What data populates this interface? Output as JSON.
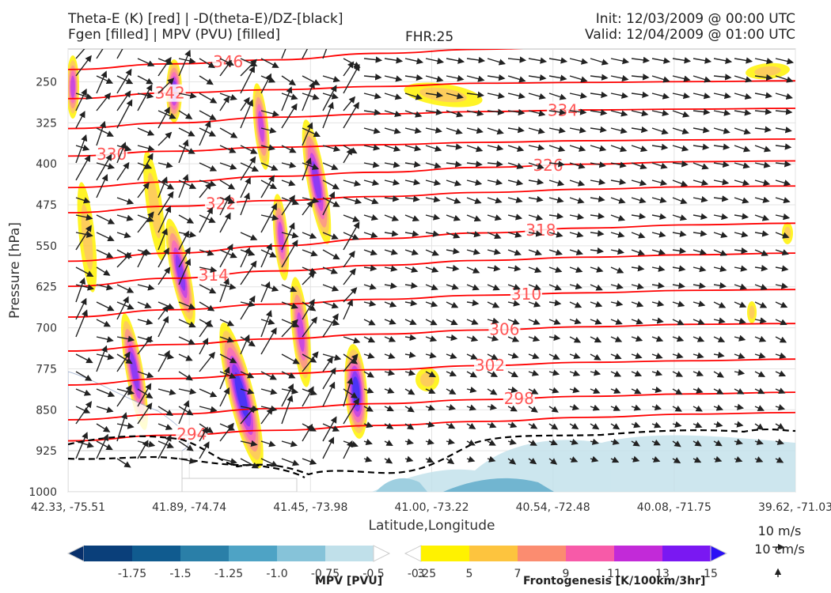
{
  "header": {
    "line1_left": "Theta-E (K) [red] | -D(theta-E)/DZ-[black]",
    "line2_left": "Fgen [filled] | MPV (PVU) [filled]",
    "fhr": "FHR:25",
    "line1_right": "Init: 12/03/2009 @ 00:00 UTC",
    "line2_right": "Valid: 12/04/2009 @ 01:00 UTC"
  },
  "chart_data": {
    "type": "cross-section",
    "xlabel": "Latitude,Longitude",
    "ylabel": "Pressure [hPa]",
    "x_ticks": [
      "42.33, -75.51",
      "41.89, -74.74",
      "41.45, -73.98",
      "41.00, -73.22",
      "40.54, -72.48",
      "40.08, -71.75",
      "39.62, -71.03"
    ],
    "y_ticks": [
      250,
      325,
      400,
      475,
      550,
      625,
      700,
      775,
      850,
      925,
      1000
    ],
    "ylim": [
      1000,
      190
    ],
    "grid": true,
    "theta_e_color": "#ff0000",
    "theta_e_contours": [
      {
        "label": "342",
        "values": [
          338.6,
          339.3,
          339.7,
          340.1,
          340.5,
          340.6,
          340.7,
          340.8
        ]
      },
      {
        "label": "346",
        "values": [
          342.2,
          342.9,
          343.4,
          344.2,
          344.7,
          345.1,
          345.4,
          345.5
        ]
      },
      {
        "label": "330",
        "values": [
          331.5,
          332.1,
          332.6,
          332.9,
          333.2,
          333.4,
          333.5,
          333.6
        ]
      },
      {
        "label": "334",
        "values": [
          334.9,
          335.6,
          336.3,
          336.7,
          337.0,
          337.2,
          337.3,
          337.4
        ]
      },
      {
        "label": "322",
        "values": [
          324.5,
          325.3,
          326.0,
          326.5,
          327.0,
          327.4,
          327.7,
          327.8
        ]
      },
      {
        "label": "326",
        "values": [
          327.6,
          328.3,
          329.0,
          329.5,
          330.1,
          330.5,
          330.8,
          330.9
        ]
      },
      {
        "label": "314",
        "values": [
          315.4,
          316.4,
          317.3,
          318.0,
          318.6,
          319.0,
          319.3,
          319.5
        ]
      },
      {
        "label": "318",
        "values": [
          318.5,
          319.5,
          320.4,
          321.3,
          322.0,
          322.6,
          323.0,
          323.2
        ]
      },
      {
        "label": "310",
        "values": [
          311.6,
          312.5,
          313.2,
          313.8,
          314.3,
          314.6,
          314.9,
          315.0
        ]
      },
      {
        "label": "306",
        "values": [
          307.4,
          308.2,
          308.9,
          309.5,
          310.0,
          310.4,
          310.7,
          310.8
        ]
      },
      {
        "label": "302",
        "values": [
          303.2,
          304.0,
          304.6,
          305.1,
          305.6,
          306.0,
          306.2,
          306.4
        ]
      },
      {
        "label": "294",
        "values": [
          296.3,
          297.0,
          297.6,
          298.2,
          298.7,
          299.2,
          299.6,
          299.8
        ]
      },
      {
        "label": "298",
        "values": [
          298.9,
          299.6,
          300.3,
          300.9,
          301.4,
          301.8,
          302.1,
          302.3
        ]
      }
    ],
    "mpv_colorbar": {
      "label": "MPV [PVU]",
      "ticks": [
        "-1.75",
        "-1.5",
        "-1.25",
        "-1.0",
        "-0.75",
        "-0.5",
        "-0.25"
      ],
      "colors": [
        "#08306b",
        "#0a3f7a",
        "#105b8f",
        "#2a7fa8",
        "#4ea3c5",
        "#86c3d9",
        "#c0e0ea",
        "#ffffff"
      ]
    },
    "fgen_colorbar": {
      "label": "Frontogenesis [K/100km/3hr]",
      "ticks": [
        "3",
        "5",
        "7",
        "9",
        "11",
        "13",
        "15"
      ],
      "colors": [
        "#ffffff",
        "#fff200",
        "#fdc43e",
        "#fb8c70",
        "#f75aa8",
        "#c22ad8",
        "#7a18f2",
        "#2b10f5"
      ]
    },
    "wind_scale": {
      "horizontal": "10 m/s",
      "vertical": "10 cm/s"
    }
  }
}
